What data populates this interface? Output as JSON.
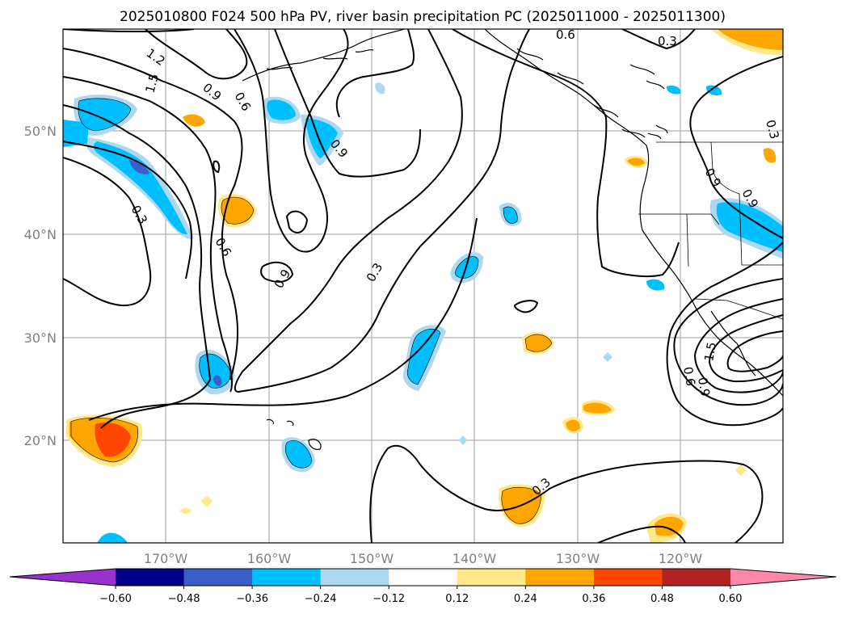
{
  "title": "2025010800 F024 500 hPa PV, river basin precipitation PC (2025011000 - 2025011300)",
  "longitude_labels": [
    "170°W",
    "160°W",
    "150°W",
    "140°W",
    "130°W",
    "120°W"
  ],
  "latitude_labels": [
    "50°N",
    "40°N",
    "30°N",
    "20°N"
  ],
  "contour_labels": [
    "1.2",
    "1.5",
    "0.9",
    "0.6",
    "0.9",
    "0.3",
    "0.6",
    "0.9",
    "0.3",
    "0.6",
    "0.3",
    "0.9",
    "0.9",
    "0.3",
    "0.6",
    "0.9",
    "1.5",
    "0.3"
  ],
  "colorbar": {
    "ticks": [
      "−0.60",
      "−0.48",
      "−0.36",
      "−0.24",
      "−0.12",
      "0.12",
      "0.24",
      "0.36",
      "0.48",
      "0.60"
    ],
    "colors": [
      "#9932cc",
      "#00008b",
      "#3a5fcd",
      "#00bfff",
      "#add8f0",
      "#ffffff",
      "#ffe88a",
      "#ffa500",
      "#ff4500",
      "#b22222",
      "#ff88aa"
    ]
  },
  "fill_colors": {
    "light_blue": "#add8f0",
    "blue": "#00bfff",
    "mid_blue": "#3a5fcd",
    "purple": "#9932cc",
    "light_yellow": "#ffe88a",
    "orange": "#ffa500",
    "red_orange": "#ff4500"
  }
}
